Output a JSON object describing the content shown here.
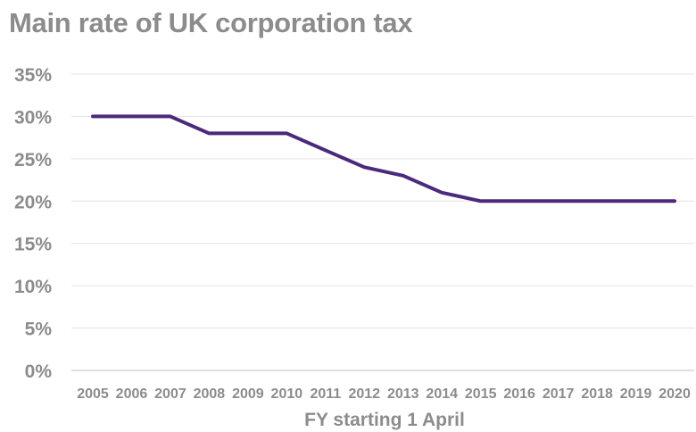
{
  "chart_data": {
    "type": "line",
    "title": "Main rate of UK corporation tax",
    "xlabel": "FY starting 1 April",
    "ylabel": "",
    "categories": [
      "2005",
      "2006",
      "2007",
      "2008",
      "2009",
      "2010",
      "2011",
      "2012",
      "2013",
      "2014",
      "2015",
      "2016",
      "2017",
      "2018",
      "2019",
      "2020"
    ],
    "series": [
      {
        "values": [
          30,
          30,
          30,
          28,
          28,
          28,
          26,
          24,
          23,
          21,
          20,
          20,
          20,
          20,
          20,
          20
        ]
      }
    ],
    "ylim": [
      0,
      35
    ],
    "yticks": [
      0,
      5,
      10,
      15,
      20,
      25,
      30,
      35
    ],
    "ytick_labels": [
      "0%",
      "5%",
      "10%",
      "15%",
      "20%",
      "25%",
      "30%",
      "35%"
    ],
    "grid": true,
    "legend": "none",
    "colors": {
      "line": "#4b2a7b",
      "grid": "#e3e3e3",
      "axis": "#bfbfbf",
      "text": "#8c8c8c"
    }
  }
}
